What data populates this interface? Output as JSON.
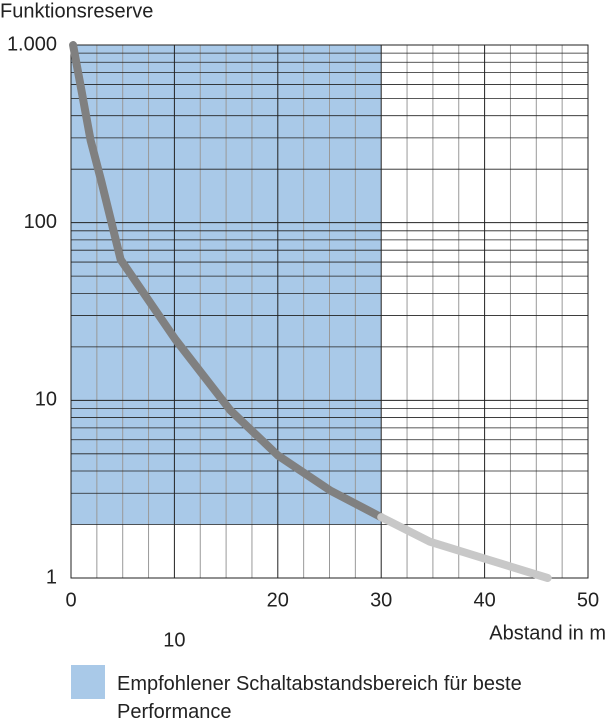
{
  "chart_data": {
    "type": "line",
    "y_label": "Funktionsreserve",
    "x_label": "Abstand in m",
    "log_y": true,
    "grid": true,
    "xlim": [
      0,
      50
    ],
    "xticks": [
      0,
      10,
      20,
      30,
      40,
      50
    ],
    "xminor": [
      2.5,
      5,
      7.5,
      12.5,
      15,
      17.5,
      22.5,
      25,
      27.5,
      32.5,
      35,
      37.5,
      42.5,
      45,
      47.5
    ],
    "ylim": [
      1,
      1000
    ],
    "yticks": [
      1,
      10,
      100,
      {
        "value": 1000,
        "label": "1.000"
      }
    ],
    "yminor": [
      2,
      3,
      4,
      5,
      6,
      7,
      8,
      9,
      20,
      30,
      40,
      50,
      60,
      70,
      80,
      90,
      200,
      300,
      400,
      500,
      600,
      700,
      800,
      900
    ],
    "region": {
      "x": [
        0,
        30
      ],
      "y": [
        2,
        1000
      ],
      "color": "#a9c9e8",
      "label": "Empfohlener Schaltabstandsbereich für beste Performance"
    },
    "series": [
      {
        "color": "#808080",
        "x": [
          0.2,
          1,
          1.9,
          2.9,
          4.8,
          10.1,
          15.4,
          20,
          25.1,
          30
        ],
        "values": [
          1000,
          560,
          290,
          174,
          62,
          22,
          8.8,
          4.9,
          3.1,
          2.2
        ]
      },
      {
        "color": "#c8c8c8",
        "x": [
          30,
          34.7,
          40.5,
          46.1
        ],
        "values": [
          2.2,
          1.6,
          1.26,
          1
        ]
      }
    ]
  }
}
